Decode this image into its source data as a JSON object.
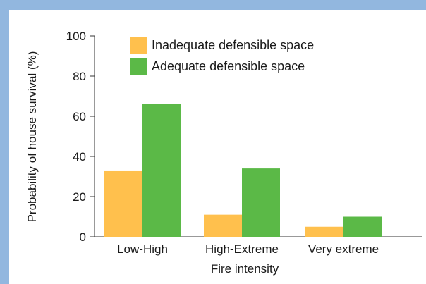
{
  "chart_data": {
    "type": "bar",
    "title": "",
    "xlabel": "Fire intensity",
    "ylabel": "Probability of house survival (%)",
    "ylim": [
      0,
      100
    ],
    "yticks": [
      0,
      20,
      40,
      60,
      80,
      100
    ],
    "categories": [
      "Low-High",
      "High-Extreme",
      "Very extreme"
    ],
    "series": [
      {
        "name": "Inadequate defensible space",
        "color": "#ffc04d",
        "values": [
          33,
          11,
          5
        ]
      },
      {
        "name": "Adequate defensible space",
        "color": "#5bb947",
        "values": [
          66,
          34,
          10
        ]
      }
    ],
    "legend_position": "top-right",
    "grid": false
  },
  "colors": {
    "background_frame": "#92b7df",
    "panel": "#ffffff",
    "axis": "#333333"
  }
}
